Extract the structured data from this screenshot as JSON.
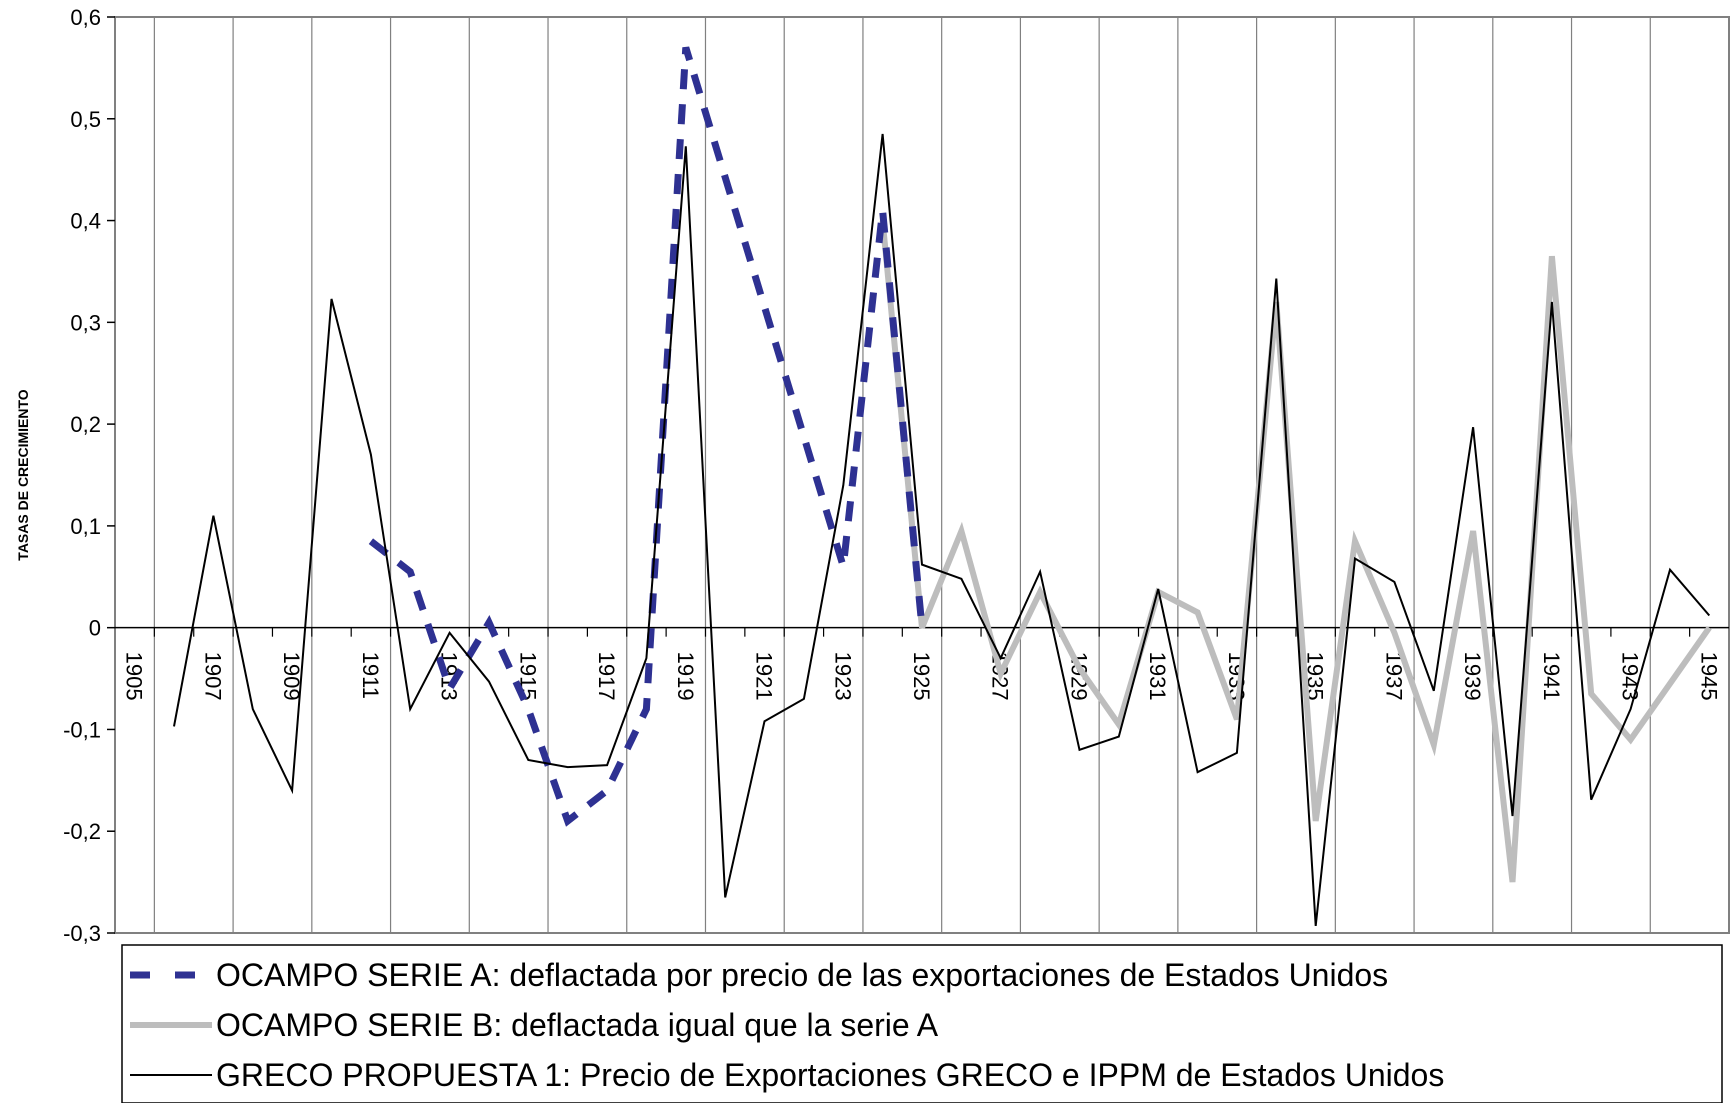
{
  "chart_data": {
    "type": "line",
    "title": "",
    "xlabel": "",
    "ylabel": "TASAS DE CRECIMIENTO",
    "ylim": [
      -0.3,
      0.6
    ],
    "xlim": [
      1904.5,
      1945.5
    ],
    "y_ticks": [
      "-0,3",
      "-0,2",
      "-0,1",
      "0",
      "0,1",
      "0,2",
      "0,3",
      "0,4",
      "0,5",
      "0,6"
    ],
    "x_tick_labels": [
      "1905",
      "1907",
      "1909",
      "1911",
      "1913",
      "1915",
      "1917",
      "1919",
      "1921",
      "1923",
      "1925",
      "1927",
      "1929",
      "1931",
      "1933",
      "1935",
      "1937",
      "1939",
      "1941",
      "1943",
      "1945"
    ],
    "grid": "vertical",
    "legend_position": "bottom",
    "series": [
      {
        "name": "OCAMPO SERIE A: deflactada por precio de las exportaciones de Estados Unidos",
        "color": "#2e3192",
        "style": "dashed",
        "points": [
          [
            1911,
            0.085
          ],
          [
            1912,
            0.055
          ],
          [
            1913,
            -0.06
          ],
          [
            1914,
            0.005
          ],
          [
            1915,
            -0.08
          ],
          [
            1916,
            -0.19
          ],
          [
            1917,
            -0.16
          ],
          [
            1918,
            -0.08
          ],
          [
            1919,
            0.57
          ],
          [
            1923,
            0.06
          ],
          [
            1924,
            0.41
          ],
          [
            1925,
            0.0
          ]
        ]
      },
      {
        "name": "OCAMPO SERIE B: deflactada igual que la serie A",
        "color": "#bdbdbd",
        "style": "solid-thick",
        "points": [
          [
            1924,
            0.4
          ],
          [
            1925,
            0.0
          ],
          [
            1926,
            0.095
          ],
          [
            1927,
            -0.045
          ],
          [
            1928,
            0.035
          ],
          [
            1929,
            -0.04
          ],
          [
            1930,
            -0.095
          ],
          [
            1931,
            0.035
          ],
          [
            1932,
            0.015
          ],
          [
            1933,
            -0.09
          ],
          [
            1934,
            0.32
          ],
          [
            1935,
            -0.19
          ],
          [
            1936,
            0.085
          ],
          [
            1937,
            -0.005
          ],
          [
            1938,
            -0.115
          ],
          [
            1939,
            0.095
          ],
          [
            1940,
            -0.25
          ],
          [
            1941,
            0.365
          ],
          [
            1942,
            -0.065
          ],
          [
            1943,
            -0.11
          ],
          [
            1944,
            -0.055
          ],
          [
            1945,
            0.0
          ]
        ]
      },
      {
        "name": "GRECO PROPUESTA 1: Precio de Exportaciones GRECO e IPPM de Estados Unidos",
        "color": "#000000",
        "style": "solid-thin",
        "points": [
          [
            1906,
            -0.097
          ],
          [
            1907,
            0.11
          ],
          [
            1908,
            -0.08
          ],
          [
            1909,
            -0.16
          ],
          [
            1910,
            0.323
          ],
          [
            1911,
            0.17
          ],
          [
            1912,
            -0.08
          ],
          [
            1913,
            -0.005
          ],
          [
            1914,
            -0.053
          ],
          [
            1915,
            -0.13
          ],
          [
            1916,
            -0.137
          ],
          [
            1917,
            -0.135
          ],
          [
            1918,
            -0.03
          ],
          [
            1919,
            0.473
          ],
          [
            1920,
            -0.265
          ],
          [
            1921,
            -0.092
          ],
          [
            1922,
            -0.07
          ],
          [
            1923,
            0.14
          ],
          [
            1924,
            0.485
          ],
          [
            1925,
            0.062
          ],
          [
            1926,
            0.048
          ],
          [
            1927,
            -0.03
          ],
          [
            1928,
            0.055
          ],
          [
            1929,
            -0.12
          ],
          [
            1930,
            -0.107
          ],
          [
            1931,
            0.038
          ],
          [
            1932,
            -0.142
          ],
          [
            1933,
            -0.123
          ],
          [
            1934,
            0.343
          ],
          [
            1935,
            -0.293
          ],
          [
            1936,
            0.068
          ],
          [
            1937,
            0.045
          ],
          [
            1938,
            -0.062
          ],
          [
            1939,
            0.197
          ],
          [
            1940,
            -0.185
          ],
          [
            1941,
            0.32
          ],
          [
            1942,
            -0.169
          ],
          [
            1943,
            -0.08
          ],
          [
            1944,
            0.057
          ],
          [
            1945,
            0.012
          ]
        ]
      }
    ]
  }
}
